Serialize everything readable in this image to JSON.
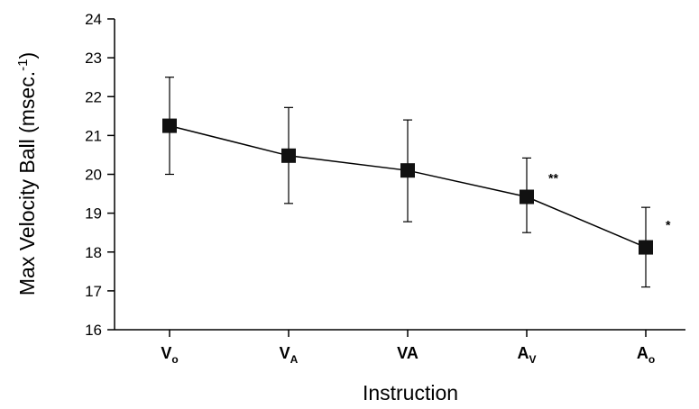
{
  "chart_data": {
    "type": "line",
    "title": "",
    "xlabel": "Instruction",
    "ylabel": "Max Velocity Ball (msec.",
    "ylabel_superscript": "-1",
    "ylabel_close": ")",
    "ylim": [
      16,
      24
    ],
    "yticks": [
      16,
      17,
      18,
      19,
      20,
      21,
      22,
      23,
      24
    ],
    "grid": false,
    "categories": [
      {
        "main": "V",
        "sub": "o"
      },
      {
        "main": "V",
        "sub": "A"
      },
      {
        "main": "VA",
        "sub": ""
      },
      {
        "main": "A",
        "sub": "V"
      },
      {
        "main": "A",
        "sub": "o"
      }
    ],
    "series": [
      {
        "values": [
          21.25,
          20.48,
          20.1,
          19.42,
          18.12
        ],
        "error_low": [
          20.0,
          19.25,
          18.78,
          18.5,
          17.1
        ],
        "error_high": [
          22.5,
          21.72,
          21.4,
          20.42,
          19.15
        ]
      }
    ],
    "annotations": [
      {
        "category_index": 3,
        "text": "**"
      },
      {
        "category_index": 4,
        "text": "*"
      }
    ]
  }
}
